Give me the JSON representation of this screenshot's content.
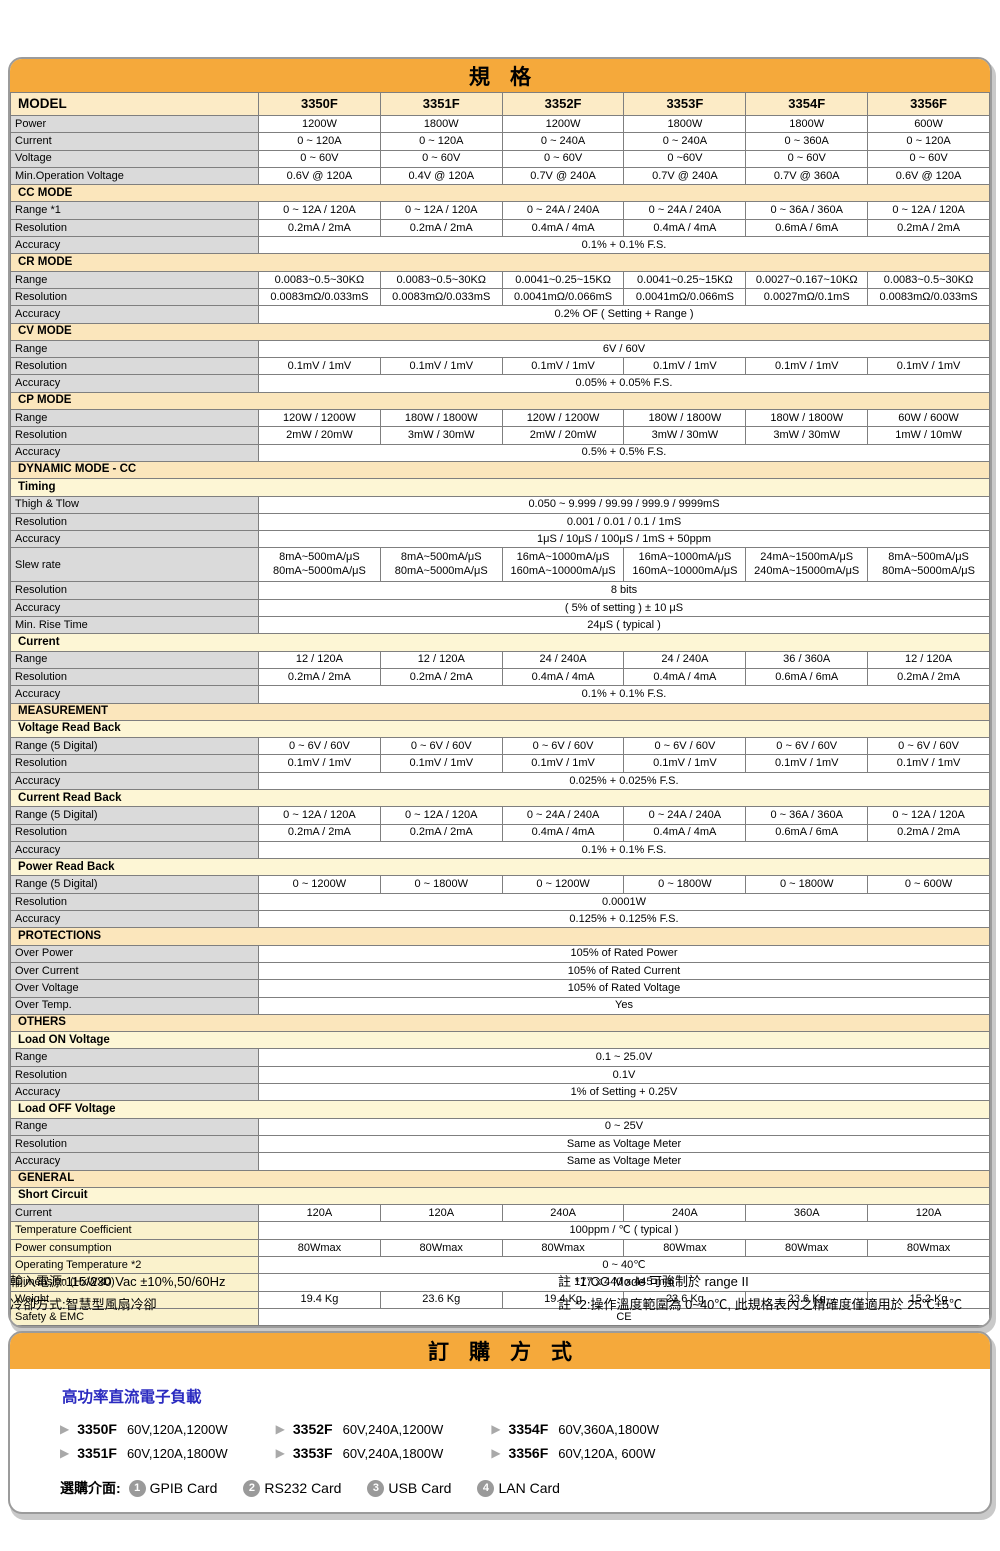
{
  "colors": {
    "accent_orange": "#F5A93B",
    "section_header_bg": "#FBE6BC",
    "subsection_header_bg": "#FDF6D5",
    "label_gray_bg": "#DADADA",
    "label_yellow_bg": "#FAF2CC",
    "subtitle_blue": "#2B2BC0",
    "badge_gray": "#9A9A9A"
  },
  "table": {
    "title": "規格",
    "model_header": "MODEL",
    "models": [
      "3350F",
      "3351F",
      "3352F",
      "3353F",
      "3354F",
      "3356F"
    ],
    "rows": [
      {
        "t": "vals",
        "label": "Power",
        "vals": [
          "1200W",
          "1800W",
          "1200W",
          "1800W",
          "1800W",
          "600W"
        ]
      },
      {
        "t": "vals",
        "label": "Current",
        "vals": [
          "0 ~ 120A",
          "0 ~ 120A",
          "0 ~ 240A",
          "0 ~ 240A",
          "0 ~ 360A",
          "0 ~ 120A"
        ]
      },
      {
        "t": "vals",
        "label": "Voltage",
        "vals": [
          "0 ~ 60V",
          "0 ~ 60V",
          "0 ~ 60V",
          "0 ~60V",
          "0 ~ 60V",
          "0 ~ 60V"
        ]
      },
      {
        "t": "vals",
        "label": "Min.Operation Voltage",
        "vals": [
          "0.6V @ 120A",
          "0.4V @ 120A",
          "0.7V @ 240A",
          "0.7V @ 240A",
          "0.7V @ 360A",
          "0.6V @ 120A"
        ]
      },
      {
        "t": "sec",
        "label": "CC MODE"
      },
      {
        "t": "vals",
        "label": "Range *1",
        "vals": [
          "0 ~ 12A / 120A",
          "0 ~ 12A / 120A",
          "0 ~ 24A / 240A",
          "0 ~ 24A / 240A",
          "0 ~ 36A / 360A",
          "0 ~ 12A / 120A"
        ]
      },
      {
        "t": "vals",
        "label": "Resolution",
        "vals": [
          "0.2mA / 2mA",
          "0.2mA / 2mA",
          "0.4mA / 4mA",
          "0.4mA / 4mA",
          "0.6mA / 6mA",
          "0.2mA / 2mA"
        ]
      },
      {
        "t": "span",
        "label": "Accuracy",
        "val": "0.1% + 0.1% F.S."
      },
      {
        "t": "sec",
        "label": "CR MODE"
      },
      {
        "t": "vals",
        "label": "Range",
        "vals": [
          "0.0083~0.5~30KΩ",
          "0.0083~0.5~30KΩ",
          "0.0041~0.25~15KΩ",
          "0.0041~0.25~15KΩ",
          "0.0027~0.167~10KΩ",
          "0.0083~0.5~30KΩ"
        ]
      },
      {
        "t": "vals",
        "label": "Resolution",
        "vals": [
          "0.0083mΩ/0.033mS",
          "0.0083mΩ/0.033mS",
          "0.0041mΩ/0.066mS",
          "0.0041mΩ/0.066mS",
          "0.0027mΩ/0.1mS",
          "0.0083mΩ/0.033mS"
        ]
      },
      {
        "t": "span",
        "label": "Accuracy",
        "val": "0.2% OF ( Setting + Range )"
      },
      {
        "t": "sec",
        "label": "CV MODE"
      },
      {
        "t": "span",
        "label": "Range",
        "val": "6V / 60V"
      },
      {
        "t": "vals",
        "label": "Resolution",
        "vals": [
          "0.1mV / 1mV",
          "0.1mV / 1mV",
          "0.1mV / 1mV",
          "0.1mV / 1mV",
          "0.1mV / 1mV",
          "0.1mV / 1mV"
        ]
      },
      {
        "t": "span",
        "label": "Accuracy",
        "val": "0.05% + 0.05% F.S."
      },
      {
        "t": "sec",
        "label": "CP MODE"
      },
      {
        "t": "vals",
        "label": "Range",
        "vals": [
          "120W / 1200W",
          "180W / 1800W",
          "120W / 1200W",
          "180W / 1800W",
          "180W / 1800W",
          "60W / 600W"
        ]
      },
      {
        "t": "vals",
        "label": "Resolution",
        "vals": [
          "2mW / 20mW",
          "3mW / 30mW",
          "2mW / 20mW",
          "3mW / 30mW",
          "3mW / 30mW",
          "1mW / 10mW"
        ]
      },
      {
        "t": "span",
        "label": "Accuracy",
        "val": "0.5% + 0.5% F.S."
      },
      {
        "t": "sec",
        "label": "DYNAMIC MODE - CC"
      },
      {
        "t": "sub",
        "label": "Timing"
      },
      {
        "t": "span",
        "label": "Thigh & Tlow",
        "val": "0.050 ~ 9.999 / 99.99 / 999.9 / 9999mS"
      },
      {
        "t": "span",
        "label": "Resolution",
        "val": "0.001 / 0.01 / 0.1 / 1mS"
      },
      {
        "t": "span",
        "label": "Accuracy",
        "val": "1μS / 10μS / 100μS / 1mS + 50ppm"
      },
      {
        "t": "vals2",
        "label": "Slew rate",
        "vals": [
          [
            "8mA~500mA/μS",
            "80mA~5000mA/μS"
          ],
          [
            "8mA~500mA/μS",
            "80mA~5000mA/μS"
          ],
          [
            "16mA~1000mA/μS",
            "160mA~10000mA/μS"
          ],
          [
            "16mA~1000mA/μS",
            "160mA~10000mA/μS"
          ],
          [
            "24mA~1500mA/μS",
            "240mA~15000mA/μS"
          ],
          [
            "8mA~500mA/μS",
            "80mA~5000mA/μS"
          ]
        ]
      },
      {
        "t": "span",
        "label": "Resolution",
        "val": "8 bits"
      },
      {
        "t": "span",
        "label": "Accuracy",
        "val": "( 5% of setting ) ± 10 μS"
      },
      {
        "t": "span",
        "label": "Min. Rise Time",
        "val": "24μS ( typical )"
      },
      {
        "t": "sub",
        "label": "Current"
      },
      {
        "t": "vals",
        "label": "Range",
        "vals": [
          "12 / 120A",
          "12 / 120A",
          "24 / 240A",
          "24 / 240A",
          "36 / 360A",
          "12 / 120A"
        ]
      },
      {
        "t": "vals",
        "label": "Resolution",
        "vals": [
          "0.2mA / 2mA",
          "0.2mA / 2mA",
          "0.4mA / 4mA",
          "0.4mA / 4mA",
          "0.6mA / 6mA",
          "0.2mA / 2mA"
        ]
      },
      {
        "t": "span",
        "label": "Accuracy",
        "val": "0.1% + 0.1% F.S."
      },
      {
        "t": "sec",
        "label": "MEASUREMENT"
      },
      {
        "t": "sub",
        "label": "Voltage Read Back"
      },
      {
        "t": "vals",
        "label": "Range (5 Digital)",
        "vals": [
          "0 ~ 6V / 60V",
          "0 ~ 6V / 60V",
          "0 ~ 6V / 60V",
          "0 ~ 6V / 60V",
          "0 ~ 6V / 60V",
          "0 ~ 6V / 60V"
        ]
      },
      {
        "t": "vals",
        "label": "Resolution",
        "vals": [
          "0.1mV / 1mV",
          "0.1mV / 1mV",
          "0.1mV / 1mV",
          "0.1mV / 1mV",
          "0.1mV / 1mV",
          "0.1mV / 1mV"
        ]
      },
      {
        "t": "span",
        "label": "Accuracy",
        "val": "0.025% + 0.025% F.S."
      },
      {
        "t": "sub",
        "label": "Current Read Back"
      },
      {
        "t": "vals",
        "label": "Range (5 Digital)",
        "vals": [
          "0 ~ 12A / 120A",
          "0 ~ 12A / 120A",
          "0 ~ 24A / 240A",
          "0 ~ 24A / 240A",
          "0 ~ 36A / 360A",
          "0 ~ 12A / 120A"
        ]
      },
      {
        "t": "vals",
        "label": "Resolution",
        "vals": [
          "0.2mA / 2mA",
          "0.2mA / 2mA",
          "0.4mA / 4mA",
          "0.4mA / 4mA",
          "0.6mA / 6mA",
          "0.2mA / 2mA"
        ]
      },
      {
        "t": "span",
        "label": "Accuracy",
        "val": "0.1% + 0.1% F.S."
      },
      {
        "t": "sub",
        "label": "Power Read Back"
      },
      {
        "t": "vals",
        "label": "Range (5 Digital)",
        "vals": [
          "0 ~ 1200W",
          "0 ~ 1800W",
          "0 ~ 1200W",
          "0 ~ 1800W",
          "0 ~ 1800W",
          "0 ~ 600W"
        ]
      },
      {
        "t": "span",
        "label": "Resolution",
        "val": "0.0001W"
      },
      {
        "t": "span",
        "label": "Accuracy",
        "val": "0.125% + 0.125%  F.S."
      },
      {
        "t": "sec",
        "label": "PROTECTIONS"
      },
      {
        "t": "span",
        "label": "Over Power",
        "val": "105% of Rated Power"
      },
      {
        "t": "span",
        "label": "Over Current",
        "val": "105% of Rated Current"
      },
      {
        "t": "span",
        "label": "Over Voltage",
        "val": "105% of Rated Voltage"
      },
      {
        "t": "span",
        "label": "Over Temp.",
        "val": "Yes"
      },
      {
        "t": "sec",
        "label": "OTHERS"
      },
      {
        "t": "sub",
        "label": "Load ON Voltage"
      },
      {
        "t": "span",
        "label": "Range",
        "val": "0.1 ~ 25.0V"
      },
      {
        "t": "span",
        "label": "Resolution",
        "val": "0.1V"
      },
      {
        "t": "span",
        "label": "Accuracy",
        "val": "1% of Setting + 0.25V"
      },
      {
        "t": "sub",
        "label": "Load OFF Voltage"
      },
      {
        "t": "span",
        "label": "Range",
        "val": "0 ~ 25V"
      },
      {
        "t": "span",
        "label": "Resolution",
        "val": "Same as Voltage Meter"
      },
      {
        "t": "span",
        "label": "Accuracy",
        "val": "Same as Voltage Meter"
      },
      {
        "t": "sec",
        "label": "GENERAL"
      },
      {
        "t": "sub",
        "label": "Short Circuit"
      },
      {
        "t": "vals",
        "label": "Current",
        "vals": [
          "120A",
          "120A",
          "240A",
          "240A",
          "360A",
          "120A"
        ]
      },
      {
        "t": "span",
        "label": "Temperature Coefficient",
        "val": "100ppm / ℃ ( typical )",
        "y": true
      },
      {
        "t": "vals",
        "label": "Power consumption",
        "vals": [
          "80Wmax",
          "80Wmax",
          "80Wmax",
          "80Wmax",
          "80Wmax",
          "80Wmax"
        ],
        "y": true
      },
      {
        "t": "span",
        "label": "Operating Temperature *2",
        "val": "0 ~ 40℃",
        "y": true
      },
      {
        "t": "span",
        "label": "Dimension (HxWxD)",
        "val": "177 x 440 x 445 mm",
        "y": true
      },
      {
        "t": "vals",
        "label": "Weight",
        "vals": [
          "19.4 Kg",
          "23.6 Kg",
          "19.4 Kg",
          "23.6 Kg",
          "23.6 Kg",
          "15.2 Kg"
        ],
        "y": true
      },
      {
        "t": "span",
        "label": "Safety & EMC",
        "val": "CE",
        "y": true
      }
    ]
  },
  "notes": {
    "left": [
      "輸入電源:115/230 Vac ±10%,50/60Hz",
      "冷卻方式:智慧型風扇冷卻"
    ],
    "right": [
      "註 *1:CC Mode 可強制於 range II",
      "註 *2:操作溫度範圍為 0~40℃, 此規格表內之精確度僅適用於 25℃±5℃"
    ]
  },
  "ordering": {
    "title": "訂購方式",
    "subtitle": "高功率直流電子負載",
    "models": [
      {
        "model": "3350F",
        "spec": "60V,120A,1200W"
      },
      {
        "model": "3351F",
        "spec": "60V,120A,1800W"
      },
      {
        "model": "3352F",
        "spec": "60V,240A,1200W"
      },
      {
        "model": "3353F",
        "spec": "60V,240A,1800W"
      },
      {
        "model": "3354F",
        "spec": "60V,360A,1800W"
      },
      {
        "model": "3356F",
        "spec": "60V,120A, 600W"
      }
    ],
    "options_label": "選購介面:",
    "options": [
      {
        "num": "1",
        "label": "GPIB Card"
      },
      {
        "num": "2",
        "label": "RS232 Card"
      },
      {
        "num": "3",
        "label": "USB Card"
      },
      {
        "num": "4",
        "label": "LAN Card"
      }
    ]
  }
}
